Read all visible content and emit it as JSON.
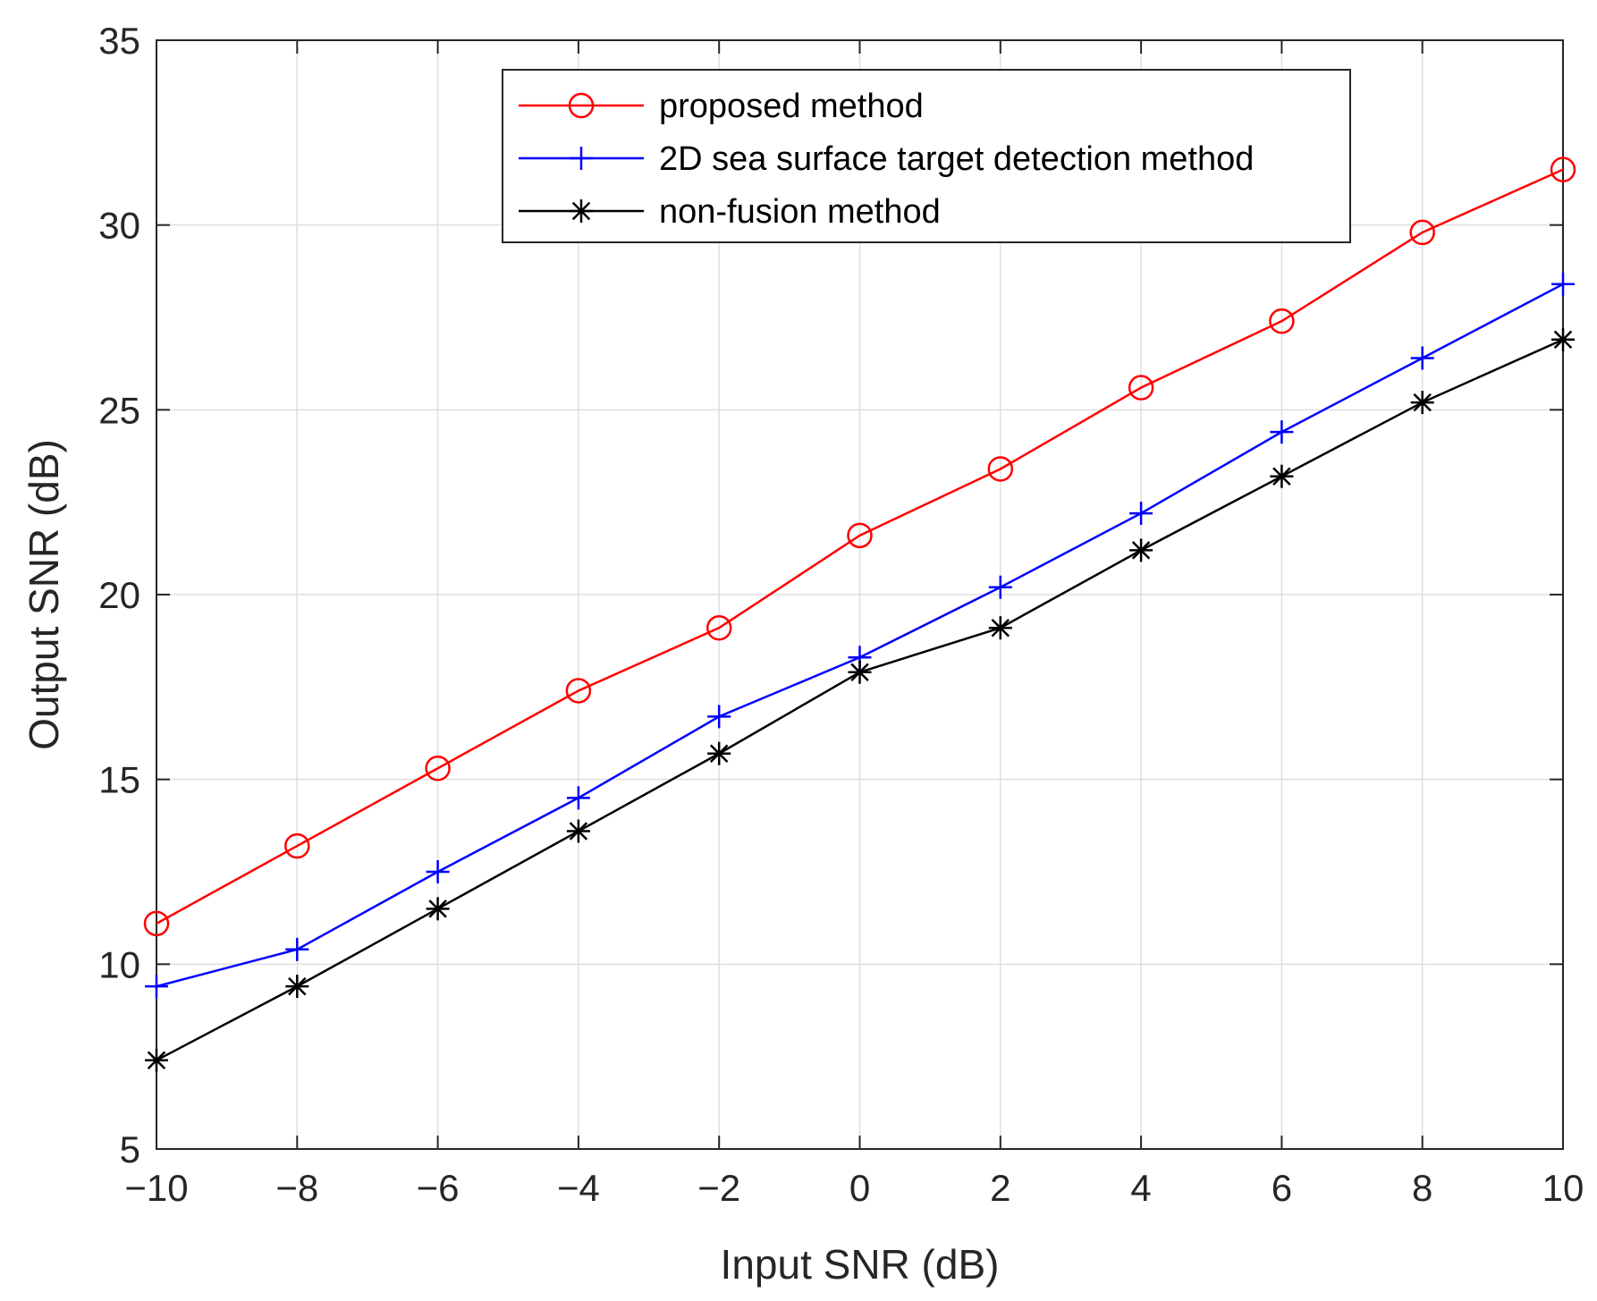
{
  "chart_data": {
    "type": "line",
    "xlabel": "Input SNR (dB)",
    "ylabel": "Output SNR (dB)",
    "xlim": [
      -10,
      10
    ],
    "ylim": [
      5,
      35
    ],
    "x_ticks": [
      -10,
      -8,
      -6,
      -4,
      -2,
      0,
      2,
      4,
      6,
      8,
      10
    ],
    "x_tick_labels": [
      "−10",
      "−8",
      "−6",
      "−4",
      "−2",
      "0",
      "2",
      "4",
      "6",
      "8",
      "10"
    ],
    "y_ticks": [
      5,
      10,
      15,
      20,
      25,
      30,
      35
    ],
    "y_tick_labels": [
      "5",
      "10",
      "15",
      "20",
      "25",
      "30",
      "35"
    ],
    "grid": true,
    "legend_position": "top-center",
    "x": [
      -10,
      -8,
      -6,
      -4,
      -2,
      0,
      2,
      4,
      6,
      8,
      10
    ],
    "series": [
      {
        "name": "proposed method",
        "color": "#ff0000",
        "marker": "circle",
        "values": [
          11.1,
          13.2,
          15.3,
          17.4,
          19.1,
          21.6,
          23.4,
          25.6,
          27.4,
          29.8,
          31.5
        ]
      },
      {
        "name": "2D sea surface target detection method",
        "color": "#0000ff",
        "marker": "plus",
        "values": [
          9.4,
          10.4,
          12.5,
          14.5,
          16.7,
          18.3,
          20.2,
          22.2,
          24.4,
          26.4,
          28.4
        ]
      },
      {
        "name": "non-fusion method",
        "color": "#000000",
        "marker": "star",
        "values": [
          7.4,
          9.4,
          11.5,
          13.6,
          15.7,
          17.9,
          19.1,
          21.2,
          23.2,
          25.2,
          26.9
        ]
      }
    ]
  }
}
